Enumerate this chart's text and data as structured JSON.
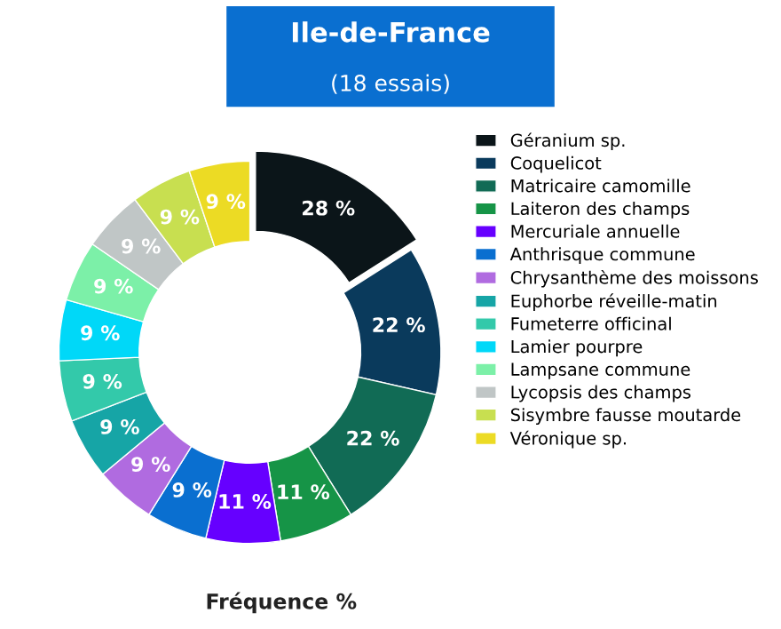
{
  "chart_data": {
    "type": "donut",
    "title": "Ile-de-France",
    "subtitle": "(18 essais)",
    "xlabel": "Fréquence %",
    "categories": [
      "Géranium sp.",
      "Coquelicot",
      "Matricaire camomille",
      "Laiteron des champs",
      "Mercuriale annuelle",
      "Anthrisque commune",
      "Chrysanthème des moissons",
      "Euphorbe réveille-matin",
      "Fumeterre officinal",
      "Lamier pourpre",
      "Lampsane commune",
      "Lycopsis des champs",
      "Sisymbre fausse moutarde",
      "Véronique sp."
    ],
    "values": [
      28,
      22,
      22,
      11,
      11,
      9,
      9,
      9,
      9,
      9,
      9,
      9,
      9,
      9
    ],
    "value_labels": [
      "28 %",
      "22 %",
      "22 %",
      "11 %",
      "11 %",
      "9 %",
      "9 %",
      "9 %",
      "9 %",
      "9 %",
      "9 %",
      "9 %",
      "9 %",
      "9 %"
    ],
    "colors": [
      "#0b1519",
      "#0a3a5c",
      "#116b55",
      "#169447",
      "#6600ff",
      "#0a6fd0",
      "#b06be0",
      "#16a5a6",
      "#33c9aa",
      "#00d8f8",
      "#7cf0a8",
      "#c0c6c6",
      "#c8df50",
      "#ecdb24"
    ],
    "legend": "right"
  }
}
